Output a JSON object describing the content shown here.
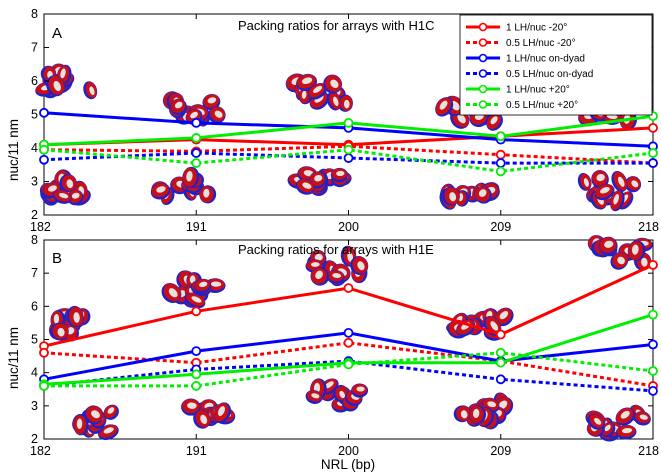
{
  "figure": {
    "xlabel": "NRL (bp)",
    "ylabel": "nuc/11 nm"
  },
  "legend": {
    "entries": [
      {
        "label": "1 LH/nuc -20°",
        "color": "#ff0000",
        "dash": "solid"
      },
      {
        "label": "0.5 LH/nuc -20°",
        "color": "#ff0000",
        "dash": "dotted"
      },
      {
        "label": "1 LH/nuc on-dyad",
        "color": "#0000ff",
        "dash": "solid"
      },
      {
        "label": "0.5 LH/nuc on-dyad",
        "color": "#0000ff",
        "dash": "dotted"
      },
      {
        "label": "1 LH/nuc +20°",
        "color": "#00ee00",
        "dash": "solid"
      },
      {
        "label": "0.5 LH/nuc +20°",
        "color": "#00ee00",
        "dash": "dotted"
      }
    ]
  },
  "chart_data": [
    {
      "type": "line",
      "panel": "A",
      "title": "Packing ratios for arrays with H1C",
      "xlabel": "",
      "ylabel": "nuc/11 nm",
      "x": [
        182,
        191,
        200,
        209,
        218
      ],
      "x_ticks": [
        "182",
        "191",
        "200",
        "209",
        "218"
      ],
      "y_ticks": [
        "2",
        "3",
        "4",
        "5",
        "6",
        "7",
        "8"
      ],
      "ylim": [
        2,
        8
      ],
      "series": [
        {
          "name": "1 LH/nuc -20°",
          "values": [
            4.1,
            4.25,
            4.1,
            4.35,
            4.6
          ]
        },
        {
          "name": "0.5 LH/nuc -20°",
          "values": [
            3.95,
            3.9,
            4.05,
            3.8,
            3.55
          ]
        },
        {
          "name": "1 LH/nuc on-dyad",
          "values": [
            5.05,
            4.75,
            4.6,
            4.25,
            4.05
          ]
        },
        {
          "name": "0.5 LH/nuc on-dyad",
          "values": [
            3.65,
            3.85,
            3.7,
            3.55,
            3.55
          ]
        },
        {
          "name": "1 LH/nuc +20°",
          "values": [
            4.1,
            4.3,
            4.75,
            4.35,
            4.95
          ]
        },
        {
          "name": "0.5 LH/nuc +20°",
          "values": [
            3.95,
            3.55,
            3.95,
            3.3,
            3.85
          ]
        }
      ],
      "grid": false,
      "legend_position": "top-right"
    },
    {
      "type": "line",
      "panel": "B",
      "title": "Packing ratios for arrays with H1E",
      "xlabel": "NRL (bp)",
      "ylabel": "nuc/11 nm",
      "x": [
        182,
        191,
        200,
        209,
        218
      ],
      "x_ticks": [
        "182",
        "191",
        "200",
        "209",
        "218"
      ],
      "y_ticks": [
        "2",
        "3",
        "4",
        "5",
        "6",
        "7",
        "8"
      ],
      "ylim": [
        2,
        8
      ],
      "series": [
        {
          "name": "1 LH/nuc -20°",
          "values": [
            4.8,
            5.85,
            6.55,
            5.15,
            7.25
          ]
        },
        {
          "name": "0.5 LH/nuc -20°",
          "values": [
            4.6,
            4.3,
            4.9,
            4.35,
            3.6
          ]
        },
        {
          "name": "1 LH/nuc on-dyad",
          "values": [
            3.8,
            4.65,
            5.2,
            4.35,
            4.85
          ]
        },
        {
          "name": "0.5 LH/nuc on-dyad",
          "values": [
            3.6,
            4.1,
            4.35,
            3.8,
            3.45
          ]
        },
        {
          "name": "1 LH/nuc +20°",
          "values": [
            3.65,
            3.95,
            4.3,
            4.3,
            5.75
          ]
        },
        {
          "name": "0.5 LH/nuc +20°",
          "values": [
            3.6,
            3.6,
            4.25,
            4.6,
            4.05
          ]
        }
      ],
      "grid": false
    }
  ]
}
